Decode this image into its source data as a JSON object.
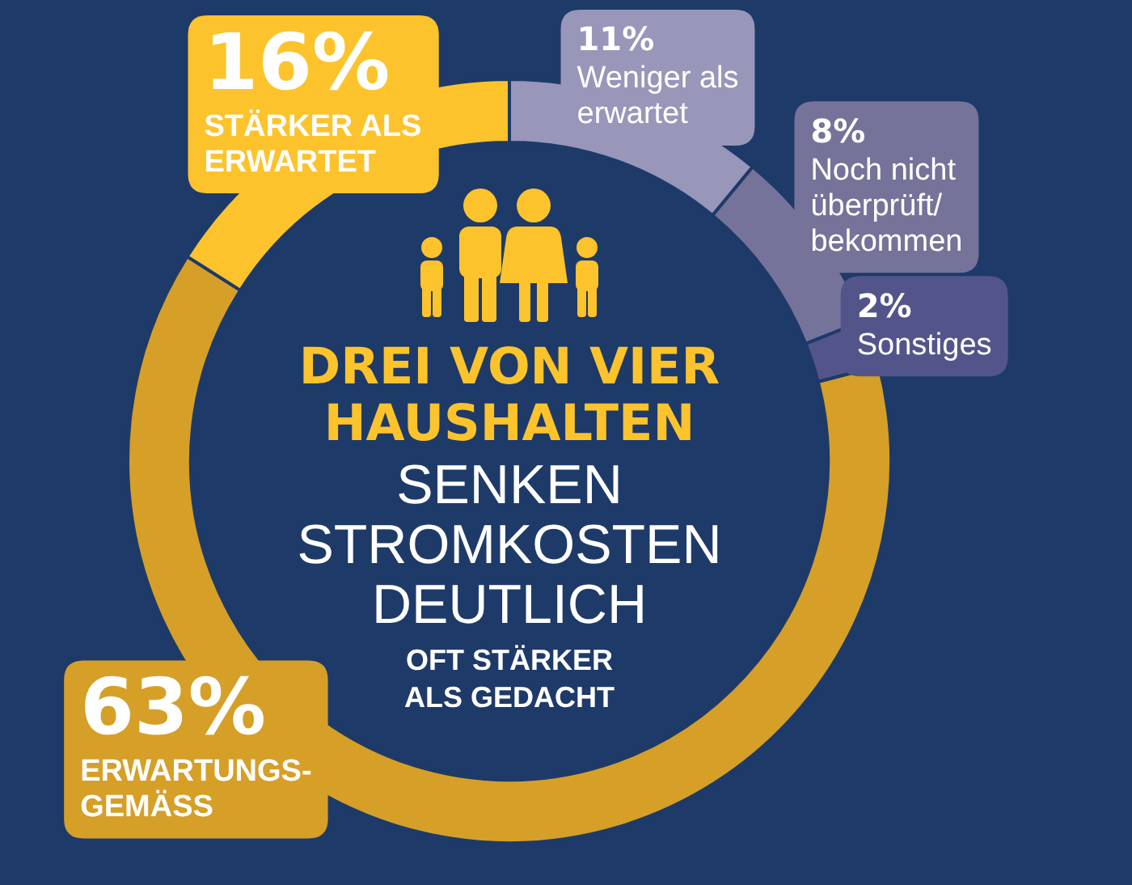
{
  "chart_data": {
    "type": "donut",
    "title": "DREI VON VIER HAUSHALTEN",
    "subtitle": "SENKEN STROMKOSTEN DEUTLICH",
    "annotations": [
      "OFT STÄRKER ALS GEDACHT"
    ],
    "categories": [
      "Weniger als erwartet",
      "Noch nicht überprüft/bekommen",
      "Sonstiges",
      "ERWARTUNGS-GEMÄSS",
      "STÄRKER ALS ERWARTET"
    ],
    "values": [
      11,
      8,
      2,
      63,
      16
    ],
    "value_labels": [
      "11%",
      "8%",
      "2%",
      "63%",
      "16%"
    ],
    "colors": [
      "#9896b9",
      "#757399",
      "#53558a",
      "#d59f28",
      "#fcc32c"
    ]
  }
}
